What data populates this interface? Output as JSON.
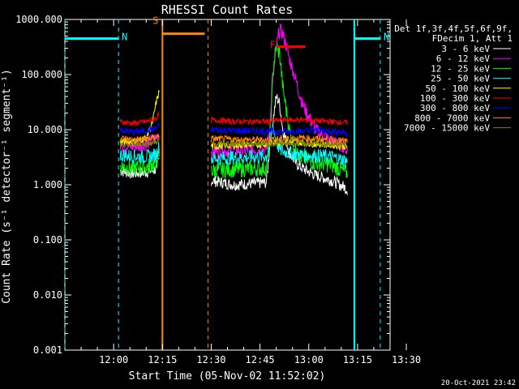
{
  "chart_data": {
    "type": "line",
    "title": "RHESSI Count Rates",
    "xlabel": "Start Time (05-Nov-02 11:52:02)",
    "ylabel": "Count Rate (s⁻¹ detector⁻¹ segment⁻¹)",
    "x_ticks": [
      "12:00",
      "12:15",
      "12:30",
      "12:45",
      "13:00",
      "13:15",
      "13:30"
    ],
    "y_ticks": [
      "0.001",
      "0.010",
      "0.100",
      "1.000",
      "10.000",
      "100.000",
      "1000.000"
    ],
    "y_log": true,
    "ylim": [
      0.001,
      1000
    ],
    "xlim_minutes": [
      -7,
      93
    ],
    "legend_header": [
      "Det 1f,3f,4f,5f,6f,9f,",
      "FDecim 1, Att 1"
    ],
    "legend_position": "top-right",
    "timestamp": "20-Oct-2021 23:42",
    "gap_minutes": [
      23,
      37
    ],
    "series": [
      {
        "name": "3 - 6 keV",
        "color": "#ffffff",
        "t": [
          10,
          14,
          18,
          21,
          22,
          38,
          45,
          55,
          56,
          58,
          59,
          60,
          62,
          64,
          66,
          70,
          75,
          79,
          80
        ],
        "values": [
          1.8,
          1.6,
          1.7,
          1.9,
          3,
          1.2,
          1.0,
          1.1,
          5,
          40,
          30,
          10,
          4,
          2.5,
          2,
          1.5,
          1.2,
          0.9,
          0.8
        ]
      },
      {
        "name": "6 - 12 keV",
        "color": "#ff00ff",
        "t": [
          10,
          14,
          18,
          21,
          22,
          38,
          45,
          55,
          56,
          57,
          58,
          59,
          60,
          61,
          62,
          64,
          66,
          70,
          75,
          79,
          80
        ],
        "values": [
          5,
          5,
          5.5,
          7,
          9,
          4,
          4.2,
          4.5,
          10,
          80,
          300,
          650,
          550,
          350,
          200,
          80,
          30,
          10,
          6,
          5,
          4
        ]
      },
      {
        "name": "12 - 25 keV",
        "color": "#00ff00",
        "t": [
          10,
          14,
          18,
          21,
          22,
          38,
          45,
          55,
          56,
          57,
          58,
          59,
          60,
          62,
          64,
          66,
          70,
          75,
          79,
          80
        ],
        "values": [
          2.2,
          2,
          2.1,
          2.5,
          3.5,
          1.8,
          1.9,
          2,
          6,
          120,
          320,
          250,
          60,
          10,
          4,
          3,
          2.5,
          2.3,
          1.7,
          1.6
        ]
      },
      {
        "name": "25 - 50 keV",
        "color": "#00ffff",
        "t": [
          10,
          14,
          18,
          21,
          22,
          38,
          45,
          55,
          56,
          57,
          58,
          59,
          60,
          62,
          64,
          66,
          70,
          75,
          79,
          80
        ],
        "values": [
          3.5,
          3.3,
          3.2,
          3.5,
          5,
          3.0,
          3.1,
          3.3,
          5,
          12,
          6,
          4.5,
          4,
          3.8,
          3.6,
          3.5,
          3.4,
          3.2,
          2.8,
          2.7
        ]
      },
      {
        "name": "50 - 100 keV",
        "color": "#ffff00",
        "t": [
          10,
          14,
          18,
          20,
          21,
          22,
          38,
          45,
          55,
          60,
          66,
          70,
          75,
          79,
          80
        ],
        "values": [
          6,
          6,
          7,
          14,
          30,
          50,
          5,
          5.2,
          5.5,
          6,
          5.8,
          5.5,
          5.3,
          5.0,
          4.8
        ]
      },
      {
        "name": "100 - 300 keV",
        "color": "#ff0000",
        "t": [
          10,
          14,
          18,
          21,
          22,
          38,
          45,
          55,
          60,
          66,
          70,
          75,
          79,
          80
        ],
        "values": [
          14,
          13,
          14,
          16,
          19,
          15,
          14,
          14,
          15,
          15,
          14.5,
          14,
          13.5,
          13
        ]
      },
      {
        "name": "300 - 800 keV",
        "color": "#0000ff",
        "t": [
          10,
          14,
          18,
          21,
          22,
          38,
          45,
          55,
          60,
          66,
          70,
          75,
          79,
          80
        ],
        "values": [
          10,
          9,
          9.5,
          10.5,
          12,
          10,
          9.6,
          9.4,
          9.2,
          9.5,
          9.8,
          9.4,
          9,
          8.5
        ]
      },
      {
        "name": "800 - 7000 keV",
        "color": "#ff8800",
        "t": [
          10,
          14,
          18,
          21,
          22,
          38,
          45,
          55,
          60,
          66,
          70,
          75,
          79,
          80
        ],
        "values": [
          7,
          6.5,
          6.8,
          7.2,
          8,
          6.8,
          6.6,
          6.5,
          6.8,
          7,
          6.8,
          6.5,
          6.2,
          6
        ]
      },
      {
        "name": "7000 - 15000 keV",
        "color": "#808000",
        "t": [
          10,
          14,
          18,
          21,
          22,
          38,
          45,
          55,
          60,
          66,
          70,
          75,
          79,
          80
        ],
        "values": [
          5,
          5.5,
          5.5,
          6,
          6.5,
          5.5,
          5.6,
          5.6,
          5.5,
          5.7,
          5.5,
          5.4,
          5.2,
          5
        ]
      }
    ],
    "annotations": [
      {
        "label": "N",
        "color": "#00ffff",
        "t_start": -7,
        "t_end": 9.5,
        "value": 450,
        "boundaries": [
          -7,
          9.5
        ]
      },
      {
        "label": "N",
        "color": "#00ffff",
        "t_start": 82,
        "t_end": 90,
        "value": 450,
        "boundaries": [
          82,
          90
        ]
      },
      {
        "label": "S",
        "color": "#ff8800",
        "t_start": 23,
        "t_end": 36,
        "value": 550,
        "boundaries": [
          23,
          37
        ]
      },
      {
        "label": "F",
        "color": "#ff0000",
        "t_start": 58,
        "t_end": 67,
        "value": 320,
        "boundaries": []
      }
    ]
  }
}
